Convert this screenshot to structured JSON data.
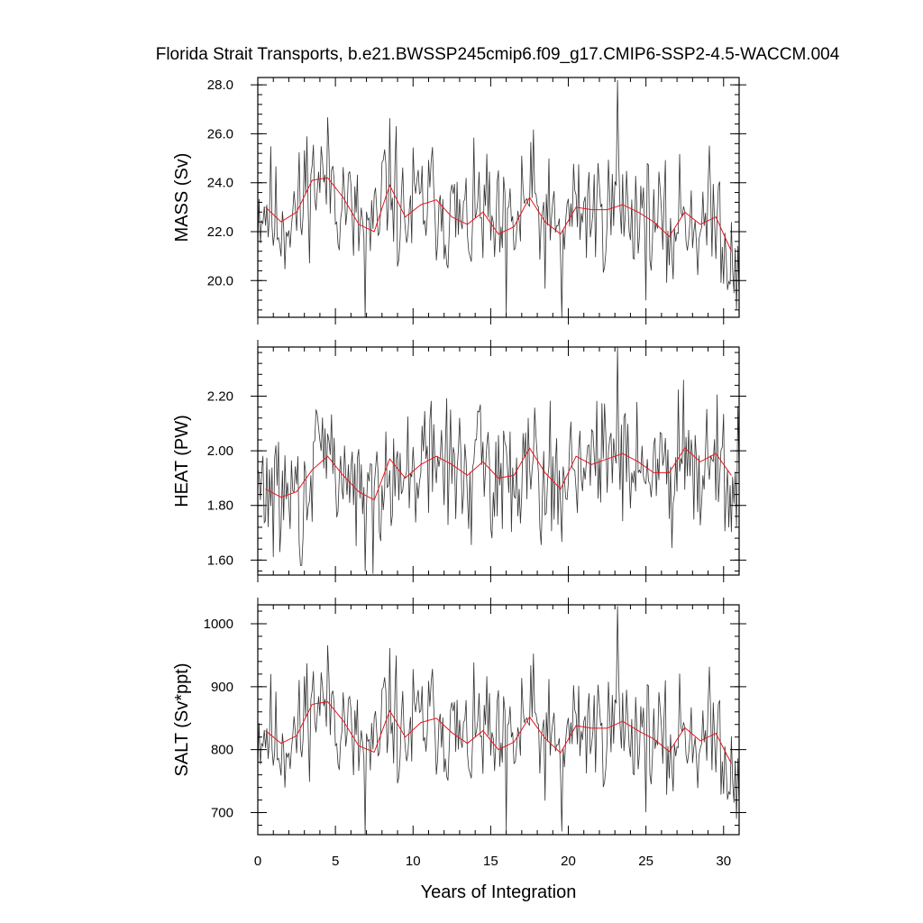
{
  "title": "Florida Strait Transports, b.e21.BWSSP245cmip6.f09_g17.CMIP6-SSP2-4.5-WACCM.004",
  "xlabel": "Years of Integration",
  "colors": {
    "monthly": "#333333",
    "annual": "#e8141c",
    "frame": "#000000"
  },
  "chart_data": [
    {
      "type": "line",
      "panel": "mass",
      "ylabel": "MASS (Sv)",
      "xlim": [
        0,
        31
      ],
      "ylim": [
        18.5,
        28.3
      ],
      "xticks": [
        0,
        5,
        10,
        15,
        20,
        25,
        30
      ],
      "xtick_labels": [
        "0",
        "5",
        "10",
        "15",
        "20",
        "25",
        "30"
      ],
      "yticks": [
        20.0,
        22.0,
        24.0,
        26.0,
        28.0
      ],
      "ytick_labels": [
        "20.0",
        "22.0",
        "24.0",
        "26.0",
        "28.0"
      ],
      "base": 22.8,
      "amp": 1.6,
      "seed": 11,
      "min": 18.5,
      "max": 28.2,
      "spikes": [
        [
          23.2,
          28.2
        ],
        [
          6.9,
          18.5
        ],
        [
          19.6,
          18.5
        ],
        [
          16.0,
          18.6
        ],
        [
          30.8,
          18.8
        ]
      ],
      "series": [
        {
          "name": "annual mean",
          "x": [
            0.5,
            1.5,
            2.5,
            3.5,
            4.5,
            5.5,
            6.5,
            7.5,
            8.5,
            9.5,
            10.5,
            11.5,
            12.5,
            13.5,
            14.5,
            15.5,
            16.5,
            17.5,
            18.5,
            19.5,
            20.5,
            21.5,
            22.5,
            23.5,
            24.5,
            25.5,
            26.5,
            27.5,
            28.5,
            29.5,
            30.5
          ],
          "y": [
            23.0,
            22.4,
            22.8,
            24.1,
            24.2,
            23.4,
            22.3,
            22.0,
            23.9,
            22.6,
            23.1,
            23.3,
            22.6,
            22.3,
            22.8,
            21.9,
            22.2,
            23.4,
            22.4,
            21.9,
            23.0,
            22.9,
            22.9,
            23.1,
            22.8,
            22.4,
            21.8,
            22.8,
            22.3,
            22.6,
            21.2
          ]
        }
      ]
    },
    {
      "type": "line",
      "panel": "heat",
      "ylabel": "HEAT (PW)",
      "xlim": [
        0,
        31
      ],
      "ylim": [
        1.545,
        2.38
      ],
      "xticks": [
        0,
        5,
        10,
        15,
        20,
        25,
        30
      ],
      "xtick_labels": [
        "0",
        "5",
        "10",
        "15",
        "20",
        "25",
        "30"
      ],
      "yticks": [
        1.6,
        1.8,
        2.0,
        2.2
      ],
      "ytick_labels": [
        "1.60",
        "1.80",
        "2.00",
        "2.20"
      ],
      "base": 1.93,
      "amp": 0.14,
      "seed": 29,
      "min": 1.55,
      "max": 2.38,
      "spikes": [
        [
          23.2,
          2.38
        ],
        [
          6.9,
          1.56
        ],
        [
          2.8,
          1.58
        ],
        [
          27.4,
          2.26
        ],
        [
          30.8,
          1.72
        ]
      ],
      "series": [
        {
          "name": "annual mean",
          "x": [
            0.5,
            1.5,
            2.5,
            3.5,
            4.5,
            5.5,
            6.5,
            7.5,
            8.5,
            9.5,
            10.5,
            11.5,
            12.5,
            13.5,
            14.5,
            15.5,
            16.5,
            17.5,
            18.5,
            19.5,
            20.5,
            21.5,
            22.5,
            23.5,
            24.5,
            25.5,
            26.5,
            27.5,
            28.5,
            29.5,
            30.5
          ],
          "y": [
            1.86,
            1.83,
            1.85,
            1.93,
            1.98,
            1.91,
            1.85,
            1.82,
            1.97,
            1.9,
            1.95,
            1.98,
            1.95,
            1.91,
            1.96,
            1.9,
            1.91,
            2.01,
            1.92,
            1.86,
            1.98,
            1.95,
            1.97,
            1.99,
            1.96,
            1.92,
            1.92,
            2.01,
            1.96,
            1.99,
            1.91
          ]
        }
      ]
    },
    {
      "type": "line",
      "panel": "salt",
      "ylabel": "SALT (Sv*ppt)",
      "xlim": [
        0,
        31
      ],
      "ylim": [
        665,
        1030
      ],
      "xticks": [
        0,
        5,
        10,
        15,
        20,
        25,
        30
      ],
      "xtick_labels": [
        "0",
        "5",
        "10",
        "15",
        "20",
        "25",
        "30"
      ],
      "yticks": [
        700,
        800,
        900,
        1000
      ],
      "ytick_labels": [
        "700",
        "800",
        "900",
        "1000"
      ],
      "base": 828,
      "amp": 58,
      "seed": 11,
      "min": 666,
      "max": 1028,
      "spikes": [
        [
          23.2,
          1028
        ],
        [
          6.9,
          666
        ],
        [
          19.6,
          670
        ],
        [
          16.0,
          672
        ],
        [
          30.8,
          690
        ]
      ],
      "series": [
        {
          "name": "annual mean",
          "x": [
            0.5,
            1.5,
            2.5,
            3.5,
            4.5,
            5.5,
            6.5,
            7.5,
            8.5,
            9.5,
            10.5,
            11.5,
            12.5,
            13.5,
            14.5,
            15.5,
            16.5,
            17.5,
            18.5,
            19.5,
            20.5,
            21.5,
            22.5,
            23.5,
            24.5,
            25.5,
            26.5,
            27.5,
            28.5,
            29.5,
            30.5
          ],
          "y": [
            830,
            810,
            822,
            872,
            876,
            846,
            806,
            796,
            862,
            820,
            843,
            850,
            827,
            810,
            830,
            800,
            812,
            852,
            818,
            795,
            838,
            834,
            834,
            845,
            830,
            817,
            797,
            835,
            814,
            826,
            778
          ]
        }
      ]
    }
  ]
}
